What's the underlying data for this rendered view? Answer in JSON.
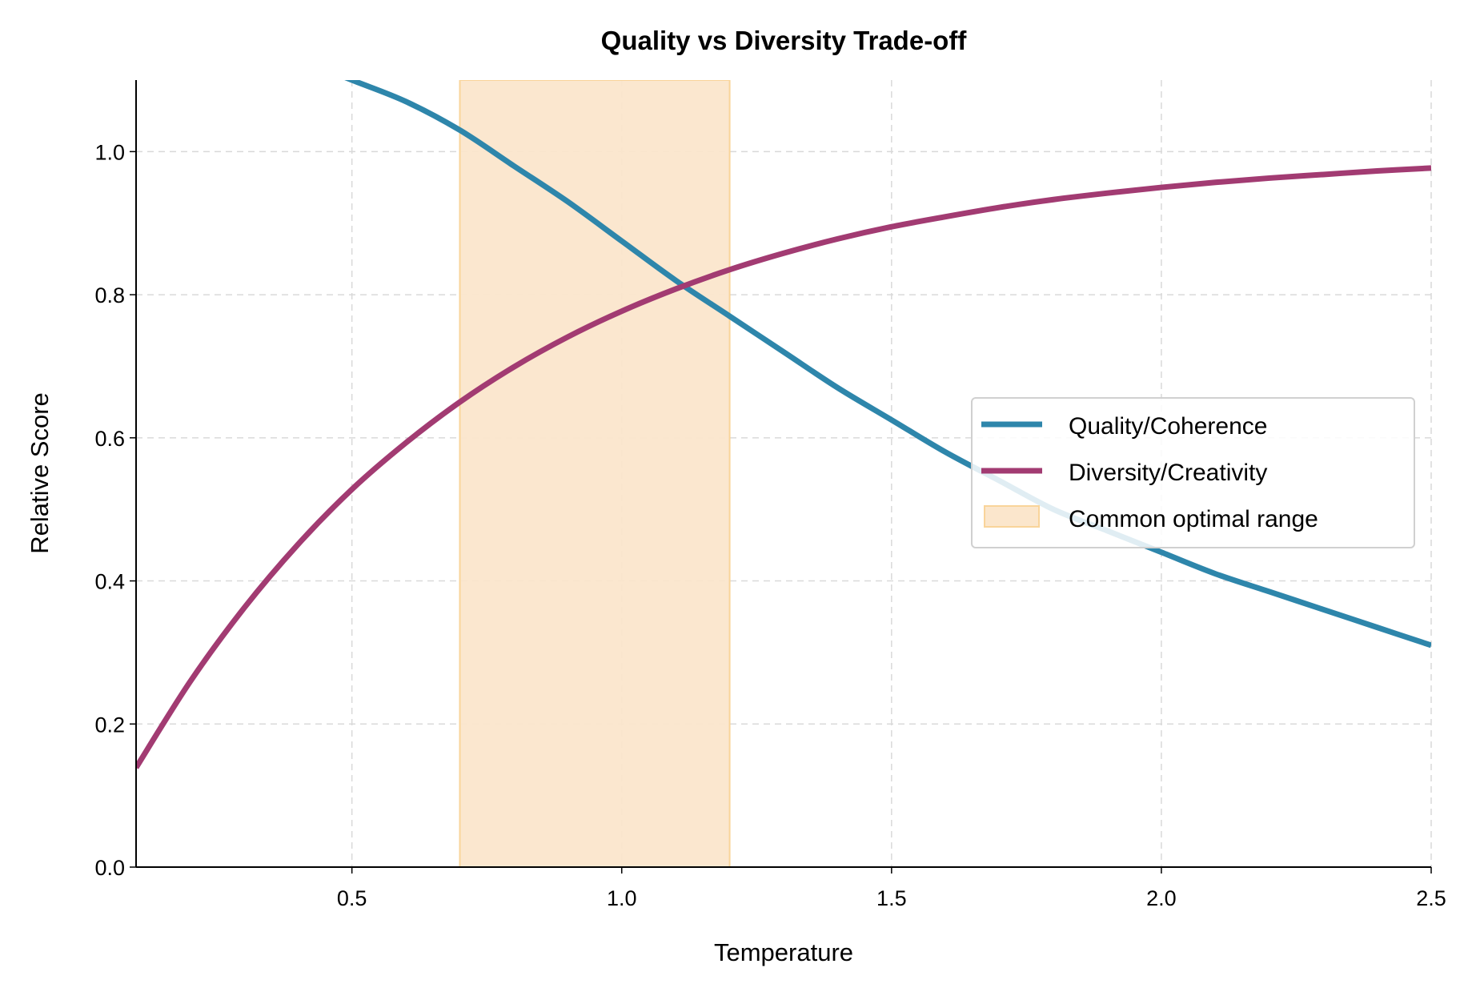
{
  "chart_data": {
    "type": "line",
    "title": "Quality vs Diversity Trade-off",
    "xlabel": "Temperature",
    "ylabel": "Relative Score",
    "xlim": [
      0.1,
      2.5
    ],
    "ylim": [
      0.0,
      1.1
    ],
    "xticks": [
      "0.5",
      "1.0",
      "1.5",
      "2.0",
      "2.5"
    ],
    "xtick_values": [
      0.5,
      1.0,
      1.5,
      2.0,
      2.5
    ],
    "yticks": [
      "0.0",
      "0.2",
      "0.4",
      "0.6",
      "0.8",
      "1.0"
    ],
    "ytick_values": [
      0.0,
      0.2,
      0.4,
      0.6,
      0.8,
      1.0
    ],
    "grid": true,
    "legend_position": "center-right",
    "series": [
      {
        "name": "Quality/Coherence",
        "color": "#2e86ab",
        "x": [
          0.4,
          0.5,
          0.6,
          0.7,
          0.8,
          0.9,
          1.0,
          1.1,
          1.2,
          1.3,
          1.4,
          1.5,
          1.6,
          1.7,
          1.8,
          1.9,
          2.0,
          2.1,
          2.2,
          2.3,
          2.4,
          2.5
        ],
        "y": [
          1.13,
          1.1,
          1.07,
          1.03,
          0.98,
          0.93,
          0.875,
          0.82,
          0.77,
          0.72,
          0.67,
          0.625,
          0.58,
          0.54,
          0.5,
          0.47,
          0.44,
          0.41,
          0.385,
          0.36,
          0.335,
          0.31
        ]
      },
      {
        "name": "Diversity/Creativity",
        "color": "#a23b72",
        "x": [
          0.1,
          0.2,
          0.3,
          0.4,
          0.5,
          0.6,
          0.7,
          0.8,
          0.9,
          1.0,
          1.1,
          1.2,
          1.3,
          1.4,
          1.5,
          1.6,
          1.7,
          1.8,
          1.9,
          2.0,
          2.1,
          2.2,
          2.3,
          2.4,
          2.5
        ],
        "y": [
          0.139,
          0.259,
          0.362,
          0.451,
          0.528,
          0.593,
          0.65,
          0.699,
          0.741,
          0.777,
          0.808,
          0.835,
          0.858,
          0.878,
          0.895,
          0.909,
          0.922,
          0.933,
          0.942,
          0.95,
          0.957,
          0.963,
          0.968,
          0.973,
          0.977
        ]
      }
    ],
    "spans": [
      {
        "name": "Common optimal range",
        "x_start": 0.7,
        "x_end": 1.2,
        "color": "#f9d49a"
      }
    ]
  }
}
